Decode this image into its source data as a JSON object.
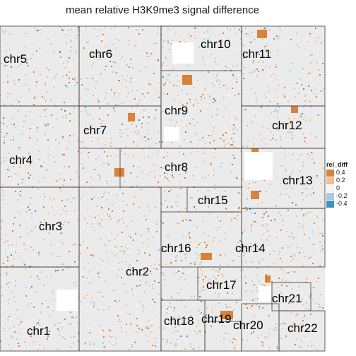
{
  "chart_data": {
    "type": "heatmap",
    "title": "mean relative H3K9me3 signal difference",
    "xlabel": "",
    "ylabel": "",
    "legend": {
      "title": "rel_diff",
      "position": "right",
      "entries": [
        {
          "label": "0.4",
          "value": 0.4,
          "color": "#d9823b"
        },
        {
          "label": "0.2",
          "value": 0.2,
          "color": "#f0c09a"
        },
        {
          "label": "0",
          "value": 0.0,
          "color": "#f5f5f5"
        },
        {
          "label": "-0.2",
          "value": -0.2,
          "color": "#a8cbe0"
        },
        {
          "label": "-0.4",
          "value": -0.4,
          "color": "#3a93c3"
        }
      ]
    },
    "chromosomes": [
      "chr1",
      "chr2",
      "chr3",
      "chr4",
      "chr5",
      "chr6",
      "chr7",
      "chr8",
      "chr9",
      "chr10",
      "chr11",
      "chr12",
      "chr13",
      "chr14",
      "chr15",
      "chr16",
      "chr17",
      "chr18",
      "chr19",
      "chr20",
      "chr21",
      "chr22"
    ],
    "panel_background": "#ebebeb",
    "grid": false
  }
}
